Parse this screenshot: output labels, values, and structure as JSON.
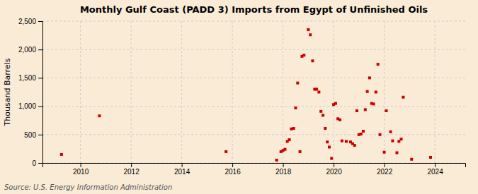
{
  "chart_data": {
    "type": "scatter",
    "title": "Monthly Gulf Coast (PADD 3) Imports from Egypt of Unfinished Oils",
    "ylabel": "Thousand Barrels",
    "annotations": [
      "Source: U.S. Energy Information Administration"
    ],
    "color": "#cc0000",
    "marker": "square",
    "grid": true,
    "xlim": [
      2008.5,
      2025.2
    ],
    "ylim": [
      0,
      2500
    ],
    "xticks": [
      2010,
      2012,
      2014,
      2016,
      2018,
      2020,
      2022,
      2024
    ],
    "yticks": [
      0,
      500,
      {
        "value": 1000,
        "label": "1,000"
      },
      {
        "value": 1500,
        "label": "1,500"
      },
      {
        "value": 2000,
        "label": "2,000"
      },
      {
        "value": 2500,
        "label": "2,500"
      }
    ],
    "x": [
      2009.25,
      2010.75,
      2015.75,
      2017.75,
      2017.92,
      2018.0,
      2018.08,
      2018.17,
      2018.25,
      2018.33,
      2018.42,
      2018.5,
      2018.58,
      2018.67,
      2018.75,
      2018.83,
      2019.0,
      2019.08,
      2019.17,
      2019.25,
      2019.33,
      2019.42,
      2019.5,
      2019.58,
      2019.67,
      2019.75,
      2019.83,
      2019.92,
      2020.0,
      2020.08,
      2020.17,
      2020.25,
      2020.33,
      2020.5,
      2020.67,
      2020.75,
      2020.83,
      2020.92,
      2021.0,
      2021.08,
      2021.17,
      2021.25,
      2021.33,
      2021.42,
      2021.5,
      2021.58,
      2021.67,
      2021.75,
      2021.83,
      2022.0,
      2022.08,
      2022.25,
      2022.33,
      2022.5,
      2022.58,
      2022.67,
      2022.75,
      2023.08,
      2023.83
    ],
    "values": [
      150,
      830,
      200,
      50,
      200,
      220,
      240,
      380,
      410,
      600,
      610,
      970,
      1410,
      200,
      1880,
      1900,
      2350,
      2260,
      1800,
      1300,
      1300,
      1250,
      910,
      840,
      610,
      370,
      280,
      80,
      1030,
      1050,
      780,
      760,
      390,
      380,
      370,
      340,
      310,
      920,
      500,
      510,
      560,
      940,
      1260,
      1500,
      1050,
      1040,
      1250,
      1740,
      500,
      190,
      920,
      550,
      390,
      180,
      380,
      420,
      1160,
      65,
      100
    ]
  }
}
